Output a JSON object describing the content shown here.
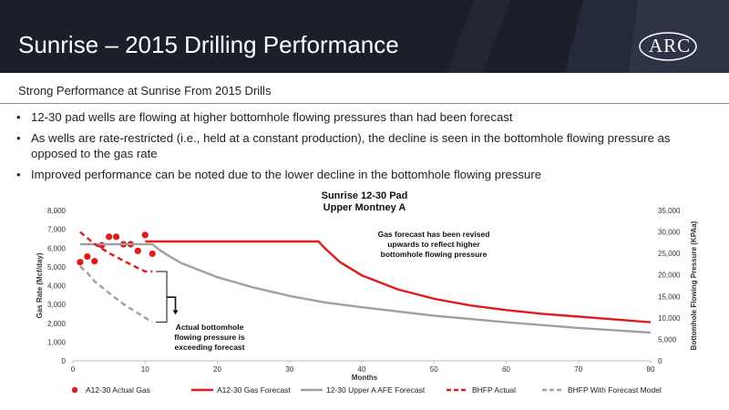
{
  "header": {
    "title": "Sunrise – 2015 Drilling Performance",
    "logo_text": "ARC",
    "colors": {
      "background": "#1c1f2a",
      "accent": "#0a5a9a"
    }
  },
  "subtitle": "Strong Performance at Sunrise From 2015 Drills",
  "bullets": [
    "12-30 pad wells are flowing at higher bottomhole flowing pressures than had been forecast",
    "As wells are rate-restricted (i.e., held at a constant production), the decline is seen in the bottomhole flowing pressure as opposed to the gas rate",
    "Improved performance can be noted due to the lower decline in the bottomhole flowing pressure"
  ],
  "chart_data": {
    "type": "line",
    "title": "Sunrise 12-30 Pad",
    "subtitle": "Upper Montney A",
    "xlabel": "Months",
    "ylabel": "Gas Rate (Mcf/day)",
    "y2label": "Bottomhole Flowing Pressure (KPAa)",
    "xlim": [
      0,
      80
    ],
    "ylim": [
      0,
      8000
    ],
    "y2lim": [
      0,
      35000
    ],
    "x_ticks": [
      "0",
      "10",
      "20",
      "30",
      "40",
      "50",
      "60",
      "70",
      "80"
    ],
    "y_ticks": [
      "0",
      "1,000",
      "2,000",
      "3,000",
      "4,000",
      "5,000",
      "6,000",
      "7,000",
      "8,000"
    ],
    "y2_ticks": [
      "0",
      "5,000",
      "10,000",
      "15,000",
      "20,000",
      "25,000",
      "30,000",
      "35,000"
    ],
    "grid": false,
    "legend_position": "bottom",
    "series": [
      {
        "name": "A12-30 Actual Gas",
        "axis": "left",
        "style": "markers",
        "color": "#e01b1b",
        "x": [
          1,
          2,
          3,
          4,
          5,
          6,
          7,
          8,
          9,
          10,
          11
        ],
        "y": [
          5250,
          5550,
          5300,
          6150,
          6600,
          6600,
          6200,
          6200,
          5850,
          6700,
          5700
        ]
      },
      {
        "name": "A12-30  Gas Forecast",
        "axis": "left",
        "style": "solid",
        "color": "#e01b1b",
        "x": [
          10,
          20,
          30,
          34,
          35,
          37,
          40,
          45,
          50,
          55,
          60,
          65,
          70,
          75,
          80
        ],
        "y": [
          6350,
          6350,
          6350,
          6350,
          5950,
          5250,
          4550,
          3800,
          3300,
          2950,
          2700,
          2500,
          2350,
          2200,
          2050
        ]
      },
      {
        "name": "12-30 Upper A AFE Forecast",
        "axis": "left",
        "style": "solid",
        "color": "#a0a0a0",
        "x": [
          1,
          3,
          6,
          9,
          10,
          11,
          12,
          13,
          15,
          20,
          25,
          30,
          35,
          40,
          50,
          60,
          70,
          80
        ],
        "y": [
          6200,
          6200,
          6200,
          6200,
          6200,
          6200,
          5900,
          5650,
          5200,
          4450,
          3900,
          3450,
          3100,
          2850,
          2400,
          2050,
          1750,
          1500
        ]
      },
      {
        "name": "BHFP Actual",
        "axis": "right",
        "style": "dashed",
        "color": "#e01b1b",
        "x": [
          1,
          3,
          5,
          7,
          9,
          10,
          11
        ],
        "y": [
          30000,
          27200,
          25100,
          23300,
          21600,
          20800,
          20800
        ]
      },
      {
        "name": "BHFP With Forecast Model",
        "axis": "right",
        "style": "dashed",
        "color": "#a0a0a0",
        "x": [
          1,
          2,
          3,
          5,
          7,
          9,
          11
        ],
        "y": [
          22000,
          20500,
          18500,
          15800,
          13200,
          11100,
          9000
        ]
      }
    ],
    "annotations": [
      "Gas forecast has been revised upwards to reflect higher bottomhole flowing pressure",
      "Actual bottomhole flowing pressure is exceeding forecast"
    ]
  }
}
